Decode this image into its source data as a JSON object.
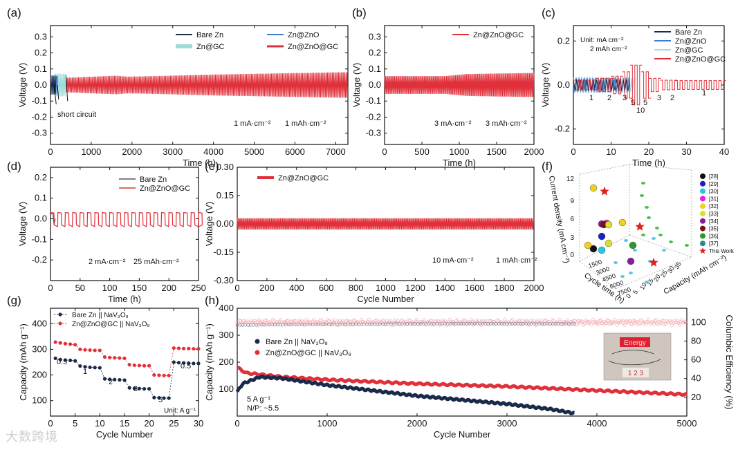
{
  "watermark": "大数跨境",
  "colors": {
    "bare": "#1b2a4a",
    "zno": "#3a7bd5",
    "gc": "#9edcd8",
    "zgc": "#e0303a",
    "zgc_light": "#f2a3a8"
  },
  "chart_data": [
    {
      "id": "a",
      "panel_label": "(a)",
      "type": "line",
      "xlabel": "Time (h)",
      "ylabel": "Voltage (V)",
      "xlim": [
        0,
        7300
      ],
      "ylim": [
        -0.37,
        0.37
      ],
      "xticks": [
        0,
        1000,
        2000,
        3000,
        4000,
        5000,
        6000,
        7000
      ],
      "yticks": [
        -0.3,
        -0.2,
        -0.1,
        0.0,
        0.1,
        0.2,
        0.3
      ],
      "ytick_labels": [
        "-0.3",
        "-0.2",
        "-0.1",
        "0.0",
        "0.1",
        "0.2",
        "0.3"
      ],
      "legend": [
        "Bare Zn",
        "Zn@ZnO",
        "Zn@GC",
        "Zn@ZnO@GC"
      ],
      "annotations": [
        "short circuit",
        "1 mA·cm⁻²",
        "1 mAh·cm⁻²"
      ],
      "series": [
        {
          "name": "Bare Zn",
          "x": [
            0,
            140
          ],
          "amplitude": [
            0.06,
            0.06
          ]
        },
        {
          "name": "Zn@ZnO",
          "x": [
            40,
            180
          ],
          "amplitude": [
            0.055,
            0.055
          ]
        },
        {
          "name": "Zn@GC",
          "x": [
            100,
            380
          ],
          "amplitude": [
            0.07,
            0.07
          ]
        },
        {
          "name": "Zn@ZnO@GC",
          "x": [
            380,
            1600,
            1900,
            2500,
            4000,
            7300
          ],
          "amplitude": [
            0.045,
            0.058,
            0.052,
            0.055,
            0.065,
            0.08
          ]
        }
      ]
    },
    {
      "id": "b",
      "panel_label": "(b)",
      "type": "line",
      "xlabel": "Time (h)",
      "ylabel": "Voltage (V)",
      "xlim": [
        0,
        2000
      ],
      "ylim": [
        -0.37,
        0.37
      ],
      "xticks": [
        0,
        500,
        1000,
        1500,
        2000
      ],
      "yticks": [
        -0.3,
        -0.2,
        -0.1,
        0.0,
        0.1,
        0.2,
        0.3
      ],
      "ytick_labels": [
        "-0.3",
        "-0.2",
        "-0.1",
        "0.0",
        "0.1",
        "0.2",
        "0.3"
      ],
      "legend": [
        "Zn@ZnO@GC"
      ],
      "annotations": [
        "3 mA·cm⁻²",
        "3 mAh·cm⁻²"
      ],
      "series": [
        {
          "name": "Zn@ZnO@GC",
          "x": [
            0,
            800,
            1100,
            1300,
            2000
          ],
          "amplitude": [
            0.055,
            0.055,
            0.068,
            0.07,
            0.075
          ]
        }
      ]
    },
    {
      "id": "c",
      "panel_label": "(c)",
      "type": "line",
      "xlabel": "Time (h)",
      "ylabel": "Voltage (V)",
      "xlim": [
        0,
        40
      ],
      "ylim": [
        -0.27,
        0.27
      ],
      "xticks": [
        0,
        10,
        20,
        30,
        40
      ],
      "yticks": [
        -0.2,
        0.0,
        0.2
      ],
      "ytick_labels": [
        "-0.2",
        "0.0",
        "0.2"
      ],
      "legend": [
        "Bare Zn",
        "Zn@ZnO",
        "Zn@GC",
        "Zn@ZnO@GC"
      ],
      "unit_text": [
        "Unit:  mA  cm⁻²",
        "2 mAh  cm⁻²"
      ],
      "rate_labels": [
        "1",
        "2",
        "3",
        "5",
        "10",
        "5",
        "3",
        "2",
        "1"
      ],
      "series": [
        {
          "name": "Zn@ZnO@GC",
          "x": [
            0,
            40
          ],
          "segments_h": [
            0,
            6,
            10,
            13,
            15,
            18,
            20,
            23,
            27,
            40
          ]
        }
      ]
    },
    {
      "id": "d",
      "panel_label": "(d)",
      "type": "line",
      "xlabel": "Time (h)",
      "ylabel": "Voltage (V)",
      "xlim": [
        0,
        250
      ],
      "ylim": [
        -0.3,
        0.25
      ],
      "xticks": [
        0,
        50,
        100,
        150,
        200,
        250
      ],
      "yticks": [
        -0.2,
        -0.1,
        0.0,
        0.1,
        0.2
      ],
      "ytick_labels": [
        "-0.2",
        "-0.1",
        "0.0",
        "0.1",
        "0.2"
      ],
      "legend": [
        "Bare Zn",
        "Zn@ZnO@GC"
      ],
      "annotations": [
        "2 mA·cm⁻²",
        "25 mAh·cm⁻²"
      ],
      "series": [
        {
          "name": "Bare Zn",
          "x": [
            0,
            8
          ],
          "amplitude": [
            0.03,
            0.03
          ]
        },
        {
          "name": "Zn@ZnO@GC",
          "period_h": 12.5,
          "amplitude": 0.03
        }
      ]
    },
    {
      "id": "e",
      "panel_label": "(e)",
      "type": "line",
      "xlabel": "Cycle Number",
      "ylabel": "Voltage (V)",
      "xlim": [
        0,
        2000
      ],
      "ylim": [
        -0.3,
        0.3
      ],
      "xticks": [
        0,
        200,
        400,
        600,
        800,
        1000,
        1200,
        1400,
        1600,
        1800,
        2000
      ],
      "yticks": [
        -0.3,
        -0.15,
        0.0,
        0.15,
        0.3
      ],
      "ytick_labels": [
        "-0.30",
        "-0.15",
        "0.00",
        "0.15",
        "0.30"
      ],
      "legend": [
        "Zn@ZnO@GC"
      ],
      "annotations": [
        "10 mA·cm⁻²",
        "1 mAh·cm⁻²"
      ],
      "series": [
        {
          "name": "Zn@ZnO@GC",
          "x": [
            0,
            2000
          ],
          "amplitude": [
            0.03,
            0.03
          ]
        }
      ]
    },
    {
      "id": "f",
      "panel_label": "(f)",
      "type": "scatter",
      "axis_labels": {
        "z": "Current density (mA cm⁻²)",
        "x": "Cycle time (h)",
        "y": "Capacity (mAh cm⁻²)"
      },
      "zticks": [
        "0",
        "3",
        "6",
        "9",
        "12"
      ],
      "xticks": [
        "1500",
        "3000",
        "4500",
        "6000",
        "7500"
      ],
      "yticks": [
        "0",
        "5",
        "10",
        "15",
        "20",
        "25",
        "30",
        "35"
      ],
      "legend": [
        "[28]",
        "[29]",
        "[30]",
        "[31]",
        "[32]",
        "[33]",
        "[34]",
        "[35]",
        "[36]",
        "[37]",
        "This Work"
      ],
      "legend_colors": [
        "#111111",
        "#2020c0",
        "#22c8e8",
        "#e020e0",
        "#f0d020",
        "#d8e030",
        "#8a1aa0",
        "#7a1010",
        "#2a9a2a",
        "#2a8a8a",
        "#e02020"
      ]
    },
    {
      "id": "g",
      "panel_label": "(g)",
      "type": "scatter",
      "xlabel": "Cycle Number",
      "ylabel": "Capacity (mAh g⁻¹)",
      "xlim": [
        0,
        30
      ],
      "ylim": [
        40,
        460
      ],
      "xticks": [
        0,
        5,
        10,
        15,
        20,
        25,
        30
      ],
      "yticks": [
        100,
        200,
        300,
        400
      ],
      "legend": [
        "Bare Zn || NaV₃O₈",
        "Zn@ZnO@GC || NaV₃O₈"
      ],
      "rate_labels": [
        "0.5",
        "1",
        "2",
        "3",
        "5",
        "0.5"
      ],
      "unit_text": "Unit: A g⁻¹",
      "series": [
        {
          "name": "Bare Zn || NaV₃O₈",
          "x": [
            1,
            2,
            3,
            4,
            5,
            6,
            7,
            8,
            9,
            10,
            11,
            12,
            13,
            14,
            15,
            16,
            17,
            18,
            19,
            20,
            21,
            22,
            23,
            24,
            25,
            26,
            27,
            28,
            29,
            30
          ],
          "values": [
            265,
            260,
            258,
            257,
            255,
            235,
            232,
            230,
            229,
            228,
            185,
            183,
            182,
            181,
            180,
            150,
            148,
            147,
            146,
            146,
            112,
            111,
            110,
            110,
            250,
            248,
            247,
            246,
            245,
            245
          ]
        },
        {
          "name": "Zn@ZnO@GC || NaV₃O₈",
          "x": [
            1,
            2,
            3,
            4,
            5,
            6,
            7,
            8,
            9,
            10,
            11,
            12,
            13,
            14,
            15,
            16,
            17,
            18,
            19,
            20,
            21,
            22,
            23,
            24,
            25,
            26,
            27,
            28,
            29,
            30
          ],
          "values": [
            328,
            325,
            322,
            320,
            318,
            300,
            298,
            297,
            296,
            296,
            270,
            268,
            267,
            266,
            265,
            240,
            238,
            237,
            236,
            236,
            200,
            199,
            198,
            198,
            305,
            304,
            303,
            303,
            302,
            302
          ]
        }
      ]
    },
    {
      "id": "h",
      "panel_label": "(h)",
      "type": "line",
      "xlabel": "Cycle Number",
      "ylabel": "Capacity (mAh g⁻¹)",
      "y2label": "Columbic Efficiency (%)",
      "xlim": [
        0,
        5000
      ],
      "ylim": [
        0,
        400
      ],
      "y2lim": [
        0,
        115
      ],
      "xticks": [
        0,
        1000,
        2000,
        3000,
        4000,
        5000
      ],
      "yticks": [
        100,
        200,
        300,
        400
      ],
      "y2ticks": [
        20,
        40,
        60,
        80,
        100
      ],
      "legend": [
        "Bare Zn || NaV₃O₈",
        "Zn@ZnO@GC || NaV₃O₈"
      ],
      "annotations": [
        "5 A g⁻¹",
        "N/P:   ~5.5"
      ],
      "inset_labels": [
        "Energy",
        "1 2 3"
      ],
      "series": [
        {
          "name": "Bare Zn || NaV₃O₈ capacity",
          "x": [
            0,
            60,
            250,
            500,
            1000,
            1500,
            2000,
            2500,
            3000,
            3500,
            3750
          ],
          "values": [
            90,
            120,
            145,
            140,
            115,
            95,
            75,
            60,
            45,
            25,
            10
          ]
        },
        {
          "name": "Zn@ZnO@GC || NaV₃O₈ capacity",
          "x": [
            0,
            100,
            500,
            1000,
            2000,
            3000,
            4000,
            5000
          ],
          "values": [
            180,
            160,
            145,
            135,
            120,
            110,
            95,
            80
          ]
        },
        {
          "name": "CE",
          "x": [
            0,
            5000
          ],
          "values": [
            100,
            100
          ]
        }
      ]
    }
  ]
}
